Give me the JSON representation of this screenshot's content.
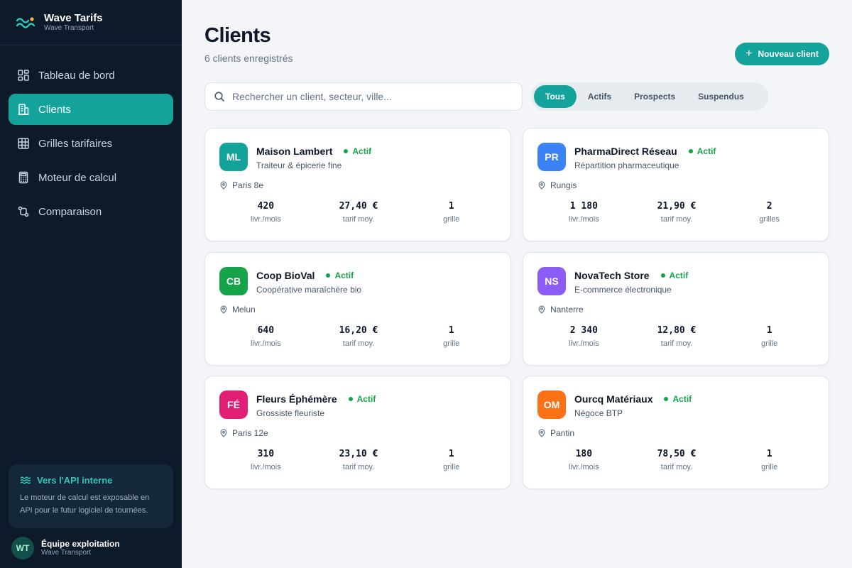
{
  "brand": {
    "title": "Wave Tarifs",
    "subtitle": "Wave Transport"
  },
  "nav": [
    {
      "label": "Tableau de bord",
      "icon": "dashboard-icon",
      "active": false
    },
    {
      "label": "Clients",
      "icon": "building-icon",
      "active": true
    },
    {
      "label": "Grilles tarifaires",
      "icon": "grid-icon",
      "active": false
    },
    {
      "label": "Moteur de calcul",
      "icon": "calculator-icon",
      "active": false
    },
    {
      "label": "Comparaison",
      "icon": "compare-icon",
      "active": false
    }
  ],
  "api_card": {
    "title": "Vers l'API interne",
    "text": "Le moteur de calcul est exposable en API pour le futur logiciel de tournées."
  },
  "user": {
    "initials": "WT",
    "name": "Équipe exploitation",
    "org": "Wave Transport"
  },
  "header": {
    "title": "Clients",
    "subtitle": "6 clients enregistrés",
    "new_button": "Nouveau client"
  },
  "search": {
    "placeholder": "Rechercher un client, secteur, ville..."
  },
  "filters": [
    {
      "label": "Tous",
      "active": true
    },
    {
      "label": "Actifs",
      "active": false
    },
    {
      "label": "Prospects",
      "active": false
    },
    {
      "label": "Suspendus",
      "active": false
    }
  ],
  "colors": {
    "accent": "#14a39a",
    "sidebar_bg": "#0c1a2a",
    "status_active": "#16a34a"
  },
  "clients": [
    {
      "initials": "ML",
      "color": "#14a39a",
      "name": "Maison Lambert",
      "status": "Actif",
      "sector": "Traiteur & épicerie fine",
      "location": "Paris 8e",
      "deliveries": "420",
      "deliveries_label": "livr./mois",
      "tariff": "27,40 €",
      "tariff_label": "tarif moy.",
      "grids": "1",
      "grids_label": "grille"
    },
    {
      "initials": "PR",
      "color": "#3b82f6",
      "name": "PharmaDirect Réseau",
      "status": "Actif",
      "sector": "Répartition pharmaceutique",
      "location": "Rungis",
      "deliveries": "1 180",
      "deliveries_label": "livr./mois",
      "tariff": "21,90 €",
      "tariff_label": "tarif moy.",
      "grids": "2",
      "grids_label": "grilles"
    },
    {
      "initials": "CB",
      "color": "#16a34a",
      "name": "Coop BioVal",
      "status": "Actif",
      "sector": "Coopérative maraîchère bio",
      "location": "Melun",
      "deliveries": "640",
      "deliveries_label": "livr./mois",
      "tariff": "16,20 €",
      "tariff_label": "tarif moy.",
      "grids": "1",
      "grids_label": "grille"
    },
    {
      "initials": "NS",
      "color": "#8b5cf6",
      "name": "NovaTech Store",
      "status": "Actif",
      "sector": "E-commerce électronique",
      "location": "Nanterre",
      "deliveries": "2 340",
      "deliveries_label": "livr./mois",
      "tariff": "12,80 €",
      "tariff_label": "tarif moy.",
      "grids": "1",
      "grids_label": "grille"
    },
    {
      "initials": "FÉ",
      "color": "#e11d74",
      "name": "Fleurs Éphémère",
      "status": "Actif",
      "sector": "Grossiste fleuriste",
      "location": "Paris 12e",
      "deliveries": "310",
      "deliveries_label": "livr./mois",
      "tariff": "23,10 €",
      "tariff_label": "tarif moy.",
      "grids": "1",
      "grids_label": "grille"
    },
    {
      "initials": "OM",
      "color": "#f97316",
      "name": "Ourcq Matériaux",
      "status": "Actif",
      "sector": "Négoce BTP",
      "location": "Pantin",
      "deliveries": "180",
      "deliveries_label": "livr./mois",
      "tariff": "78,50 €",
      "tariff_label": "tarif moy.",
      "grids": "1",
      "grids_label": "grille"
    }
  ]
}
